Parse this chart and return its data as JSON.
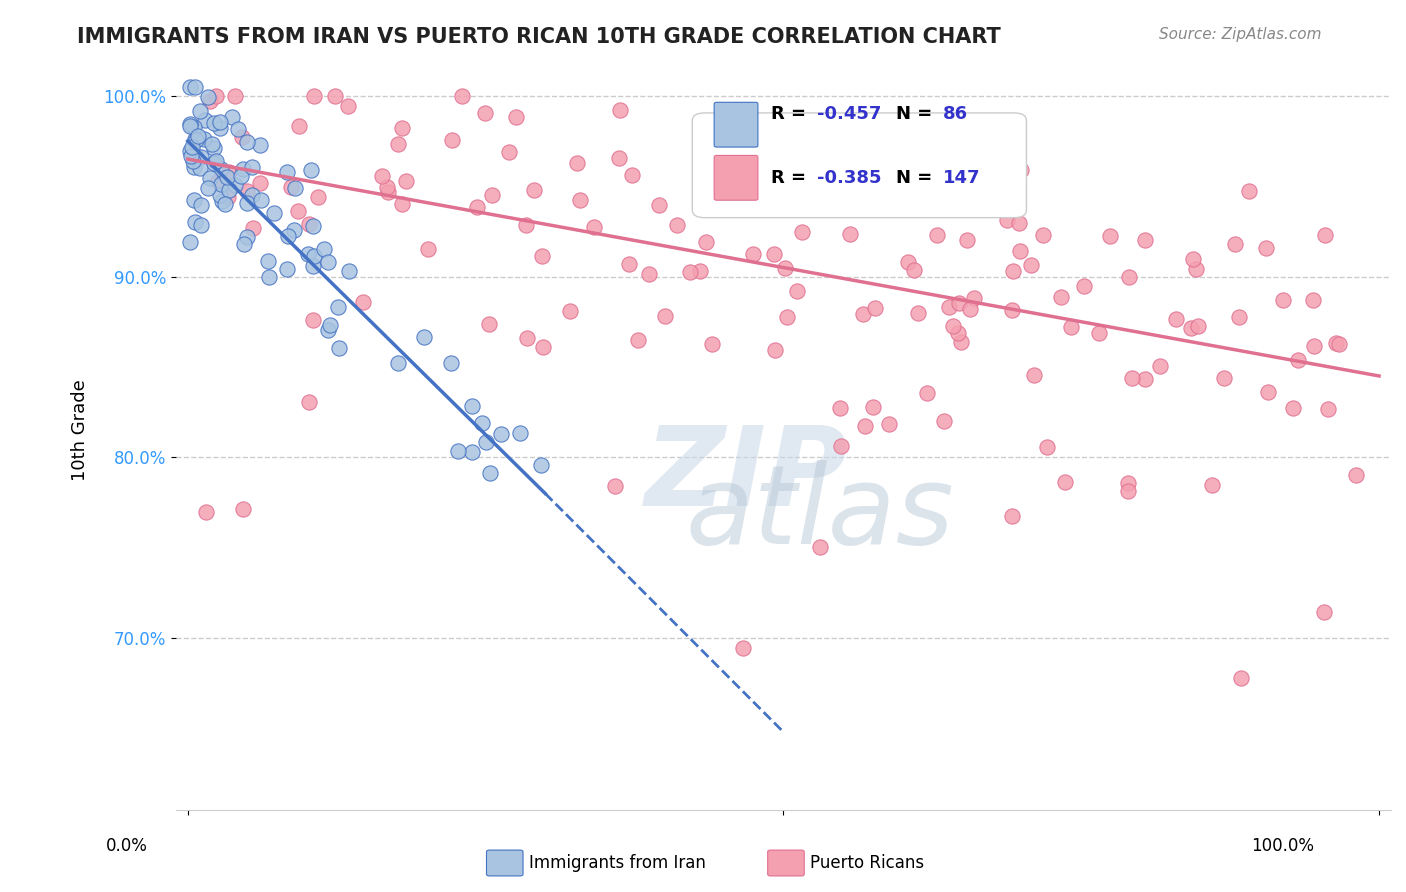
{
  "title": "IMMIGRANTS FROM IRAN VS PUERTO RICAN 10TH GRADE CORRELATION CHART",
  "source": "Source: ZipAtlas.com",
  "ylabel": "10th Grade",
  "legend_r1": "R = -0.457",
  "legend_n1": "N =  86",
  "legend_r2": "R = -0.385",
  "legend_n2": "N = 147",
  "legend_label1": "Immigrants from Iran",
  "legend_label2": "Puerto Ricans",
  "blue_color": "#a8c4e0",
  "pink_color": "#f4a0b0",
  "blue_line_color": "#4472c4",
  "pink_line_color": "#e07090",
  "r_value_color": "#3333cc",
  "background_color": "#ffffff"
}
